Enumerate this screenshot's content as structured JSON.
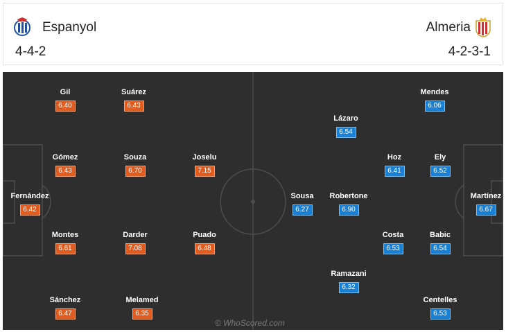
{
  "home": {
    "name": "Espanyol",
    "formation": "4-4-2",
    "crest": "espanyol-crest-icon",
    "color": "#e35c1f",
    "players": [
      {
        "id": "gil",
        "name": "Gil",
        "rating": "6.40"
      },
      {
        "id": "suarez",
        "name": "Suárez",
        "rating": "6.43"
      },
      {
        "id": "gomez",
        "name": "Gómez",
        "rating": "6.43"
      },
      {
        "id": "souza",
        "name": "Souza",
        "rating": "6.70"
      },
      {
        "id": "joselu",
        "name": "Joselu",
        "rating": "7.15"
      },
      {
        "id": "fernandez",
        "name": "Fernández",
        "rating": "6.42"
      },
      {
        "id": "montes",
        "name": "Montes",
        "rating": "6.61"
      },
      {
        "id": "darder",
        "name": "Darder",
        "rating": "7.08"
      },
      {
        "id": "puado",
        "name": "Puado",
        "rating": "6.48"
      },
      {
        "id": "sanchez",
        "name": "Sánchez",
        "rating": "6.47"
      },
      {
        "id": "melamed",
        "name": "Melamed",
        "rating": "6.35"
      }
    ]
  },
  "away": {
    "name": "Almeria",
    "formation": "4-2-3-1",
    "crest": "almeria-crest-icon",
    "color": "#1a80d6",
    "players": [
      {
        "id": "mendes",
        "name": "Mendes",
        "rating": "6.06"
      },
      {
        "id": "lazaro",
        "name": "Lázaro",
        "rating": "6.54"
      },
      {
        "id": "hoz",
        "name": "Hoz",
        "rating": "6.41"
      },
      {
        "id": "ely",
        "name": "Ely",
        "rating": "6.52"
      },
      {
        "id": "sousa",
        "name": "Sousa",
        "rating": "6.27"
      },
      {
        "id": "robertone",
        "name": "Robertone",
        "rating": "6.90"
      },
      {
        "id": "martinez",
        "name": "Martínez",
        "rating": "6.67"
      },
      {
        "id": "costa",
        "name": "Costa",
        "rating": "6.53"
      },
      {
        "id": "babic",
        "name": "Babic",
        "rating": "6.54"
      },
      {
        "id": "ramazani",
        "name": "Ramazani",
        "rating": "6.32"
      },
      {
        "id": "centelles",
        "name": "Centelles",
        "rating": "6.53"
      }
    ]
  },
  "watermark": "© WhoScored.com"
}
